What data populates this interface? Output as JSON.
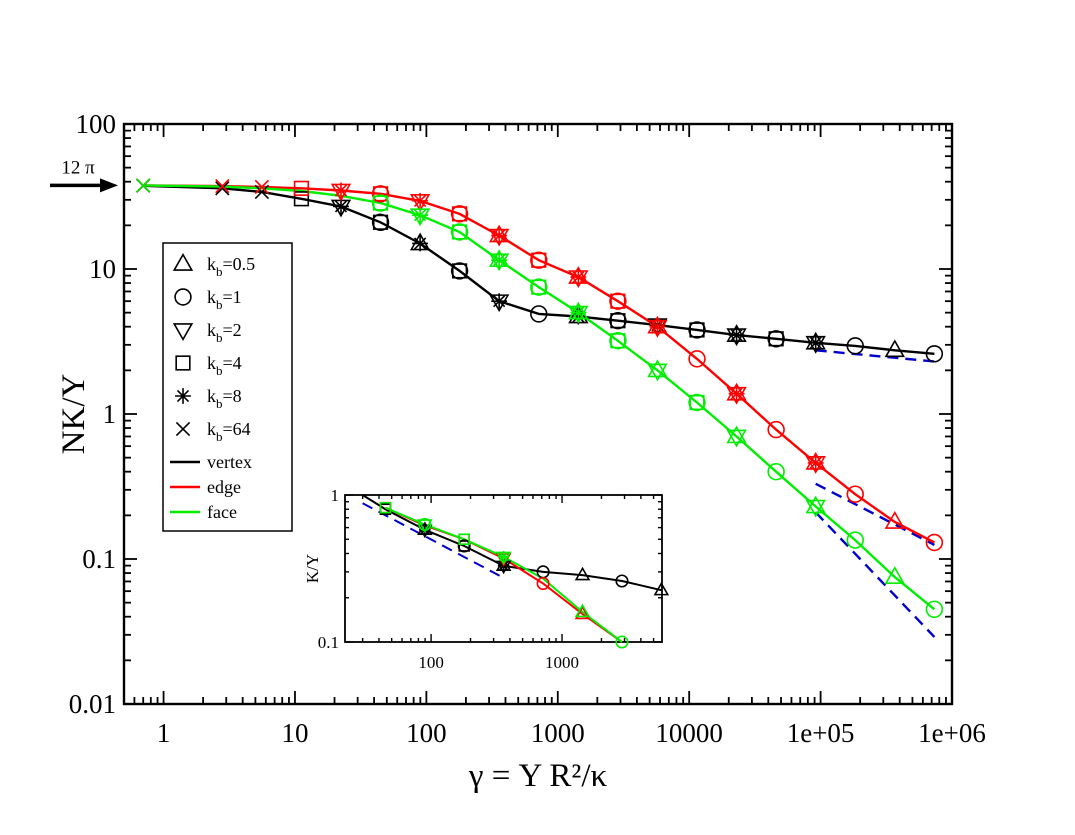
{
  "chart_data": [
    {
      "type": "line",
      "xlabel": "γ = Y R²/κ",
      "ylabel": "NK/Y",
      "xscale": "log",
      "yscale": "log",
      "xlim": [
        0.5,
        1000000
      ],
      "ylim": [
        0.01,
        100
      ],
      "xticks": [
        1,
        10,
        100,
        1000,
        10000,
        100000,
        1000000
      ],
      "xtick_labels": [
        "1",
        "10",
        "100",
        "1000",
        "10000",
        "1e+05",
        "1e+06"
      ],
      "yticks": [
        0.01,
        0.1,
        1,
        10,
        100
      ],
      "ytick_labels": [
        "0.01",
        "0.1",
        "1",
        "10",
        "100"
      ],
      "annotation": {
        "text": "12 π",
        "y": 37.7
      },
      "legend": {
        "placement": "left",
        "markers": [
          {
            "symbol": "triangle-up",
            "label_main": "k",
            "label_sub": "b",
            "label_rest": "=0.5"
          },
          {
            "symbol": "circle",
            "label_main": "k",
            "label_sub": "b",
            "label_rest": "=1"
          },
          {
            "symbol": "triangle-down",
            "label_main": "k",
            "label_sub": "b",
            "label_rest": "=2"
          },
          {
            "symbol": "square",
            "label_main": "k",
            "label_sub": "b",
            "label_rest": "=4"
          },
          {
            "symbol": "asterisk",
            "label_main": "k",
            "label_sub": "b",
            "label_rest": "=8"
          },
          {
            "symbol": "cross",
            "label_main": "k",
            "label_sub": "b",
            "label_rest": "=64"
          }
        ],
        "lines": [
          {
            "label": "vertex",
            "color": "#000000"
          },
          {
            "label": "edge",
            "color": "#ff0000"
          },
          {
            "label": "face",
            "color": "#00ee00"
          }
        ]
      },
      "series": [
        {
          "name": "vertex",
          "color": "#000000",
          "x": [
            0.7,
            2.8,
            5.6,
            11.2,
            22.4,
            44.8,
            89.6,
            179,
            358,
            717,
            1434,
            2868,
            5735,
            11470,
            22940,
            45880,
            91760,
            183500,
            367000,
            734100
          ],
          "y": [
            37.5,
            36.0,
            34.0,
            30.5,
            27.0,
            21.0,
            15.0,
            9.7,
            6.0,
            4.9,
            4.7,
            4.4,
            4.1,
            3.8,
            3.5,
            3.3,
            3.1,
            2.95,
            2.75,
            2.6
          ],
          "markers": [
            {
              "symbol": "cross",
              "idx": [
                0,
                1,
                2
              ]
            },
            {
              "symbol": "square",
              "idx": [
                3,
                5,
                7,
                11,
                13,
                15
              ]
            },
            {
              "symbol": "triangle-down",
              "idx": [
                4,
                8,
                12,
                14,
                16
              ]
            },
            {
              "symbol": "circle",
              "idx": [
                5,
                7,
                9,
                11,
                13,
                15,
                17,
                19
              ]
            },
            {
              "symbol": "asterisk",
              "idx": [
                4,
                6,
                8,
                10,
                12,
                14,
                16
              ]
            },
            {
              "symbol": "triangle-up",
              "idx": [
                6,
                10,
                14,
                16,
                18
              ]
            }
          ]
        },
        {
          "name": "edge",
          "color": "#ff0000",
          "x": [
            0.7,
            2.8,
            5.6,
            11.2,
            22.4,
            44.8,
            89.6,
            179,
            358,
            717,
            1434,
            2868,
            5735,
            11470,
            22940,
            45880,
            91760,
            183500,
            367000,
            734100
          ],
          "y": [
            37.7,
            37.3,
            36.8,
            36.0,
            34.8,
            33.0,
            29.5,
            24.0,
            17.0,
            11.5,
            8.8,
            6.0,
            4.0,
            2.4,
            1.38,
            0.78,
            0.46,
            0.28,
            0.18,
            0.13
          ],
          "markers": [
            {
              "symbol": "cross",
              "idx": [
                0,
                1,
                2
              ]
            },
            {
              "symbol": "square",
              "idx": [
                3,
                5,
                7,
                9,
                11
              ]
            },
            {
              "symbol": "triangle-down",
              "idx": [
                4,
                6,
                8,
                10,
                12,
                14,
                16
              ]
            },
            {
              "symbol": "circle",
              "idx": [
                5,
                7,
                9,
                11,
                13,
                15,
                17,
                19
              ]
            },
            {
              "symbol": "asterisk",
              "idx": [
                4,
                6,
                8,
                10,
                12,
                14,
                16
              ]
            },
            {
              "symbol": "triangle-up",
              "idx": [
                8,
                10,
                12,
                14,
                16,
                18
              ]
            }
          ]
        },
        {
          "name": "face",
          "color": "#00ee00",
          "x": [
            0.7,
            2.8,
            5.6,
            11.2,
            22.4,
            44.8,
            89.6,
            179,
            358,
            717,
            1434,
            2868,
            5735,
            11470,
            22940,
            45880,
            91760,
            183500,
            367000,
            734100
          ],
          "y": [
            37.7,
            37.0,
            36.0,
            34.5,
            32.0,
            28.5,
            23.5,
            18.0,
            11.5,
            7.5,
            5.0,
            3.2,
            2.0,
            1.2,
            0.7,
            0.4,
            0.23,
            0.135,
            0.075,
            0.045
          ],
          "markers": [
            {
              "symbol": "cross",
              "idx": [
                0
              ]
            },
            {
              "symbol": "square",
              "idx": [
                5,
                7,
                9,
                11,
                13
              ]
            },
            {
              "symbol": "triangle-down",
              "idx": [
                6,
                8,
                10,
                12,
                14,
                16
              ]
            },
            {
              "symbol": "circle",
              "idx": [
                5,
                7,
                9,
                11,
                13,
                15,
                17,
                19
              ]
            },
            {
              "symbol": "asterisk",
              "idx": [
                6,
                8,
                10
              ]
            },
            {
              "symbol": "triangle-up",
              "idx": [
                8,
                10,
                12,
                14,
                16,
                18
              ]
            }
          ]
        }
      ],
      "dashed_lines": [
        {
          "color": "#0000cc",
          "x": [
            91760,
            734100
          ],
          "y": [
            2.75,
            2.3
          ]
        },
        {
          "color": "#0000cc",
          "x": [
            91760,
            734100
          ],
          "y": [
            0.33,
            0.125
          ]
        },
        {
          "color": "#0000cc",
          "x": [
            91760,
            734100
          ],
          "y": [
            0.21,
            0.029
          ]
        }
      ]
    },
    {
      "type": "line",
      "xlabel": "",
      "ylabel": "K/Y",
      "xscale": "log",
      "yscale": "log",
      "xlim": [
        22,
        5800
      ],
      "ylim": [
        0.1,
        1
      ],
      "xticks": [
        100,
        1000
      ],
      "xtick_labels": [
        "100",
        "1000"
      ],
      "yticks": [
        0.1,
        1
      ],
      "ytick_labels": [
        "0.1",
        "1"
      ],
      "series": [
        {
          "name": "vertex",
          "color": "#000000",
          "x": [
            30,
            44.8,
            89.6,
            179,
            358,
            717,
            1434,
            2868,
            5735
          ],
          "y": [
            1.0,
            0.8,
            0.58,
            0.45,
            0.33,
            0.3,
            0.285,
            0.26,
            0.225
          ],
          "markers": [
            {
              "symbol": "square",
              "idx": [
                1,
                3
              ]
            },
            {
              "symbol": "triangle-down",
              "idx": [
                2,
                4
              ]
            },
            {
              "symbol": "circle",
              "idx": [
                3,
                5,
                7
              ]
            },
            {
              "symbol": "asterisk",
              "idx": [
                2,
                4
              ]
            },
            {
              "symbol": "triangle-up",
              "idx": [
                2,
                4,
                6,
                8
              ]
            }
          ]
        },
        {
          "name": "edge",
          "color": "#ff0000",
          "x": [
            44.8,
            89.6,
            179,
            358,
            717,
            1434,
            2868
          ],
          "y": [
            0.82,
            0.62,
            0.5,
            0.37,
            0.25,
            0.155,
            0.1
          ],
          "markers": [
            {
              "symbol": "square",
              "idx": [
                0,
                2
              ]
            },
            {
              "symbol": "circle",
              "idx": [
                4
              ]
            },
            {
              "symbol": "triangle-down",
              "idx": [
                3
              ]
            },
            {
              "symbol": "triangle-up",
              "idx": [
                5
              ]
            }
          ]
        },
        {
          "name": "face",
          "color": "#00ee00",
          "x": [
            44.8,
            89.6,
            179,
            358,
            717,
            1434,
            2868
          ],
          "y": [
            0.82,
            0.63,
            0.5,
            0.38,
            0.27,
            0.16,
            0.1
          ],
          "markers": [
            {
              "symbol": "square",
              "idx": [
                0,
                2
              ]
            },
            {
              "symbol": "circle",
              "idx": [
                1,
                6
              ]
            },
            {
              "symbol": "triangle-down",
              "idx": [
                1,
                3
              ]
            },
            {
              "symbol": "asterisk",
              "idx": [
                3
              ]
            },
            {
              "symbol": "triangle-up",
              "idx": [
                5
              ]
            }
          ]
        }
      ],
      "dashed_lines": [
        {
          "color": "#0000cc",
          "x": [
            30,
            340
          ],
          "y": [
            0.88,
            0.28
          ]
        }
      ]
    }
  ]
}
